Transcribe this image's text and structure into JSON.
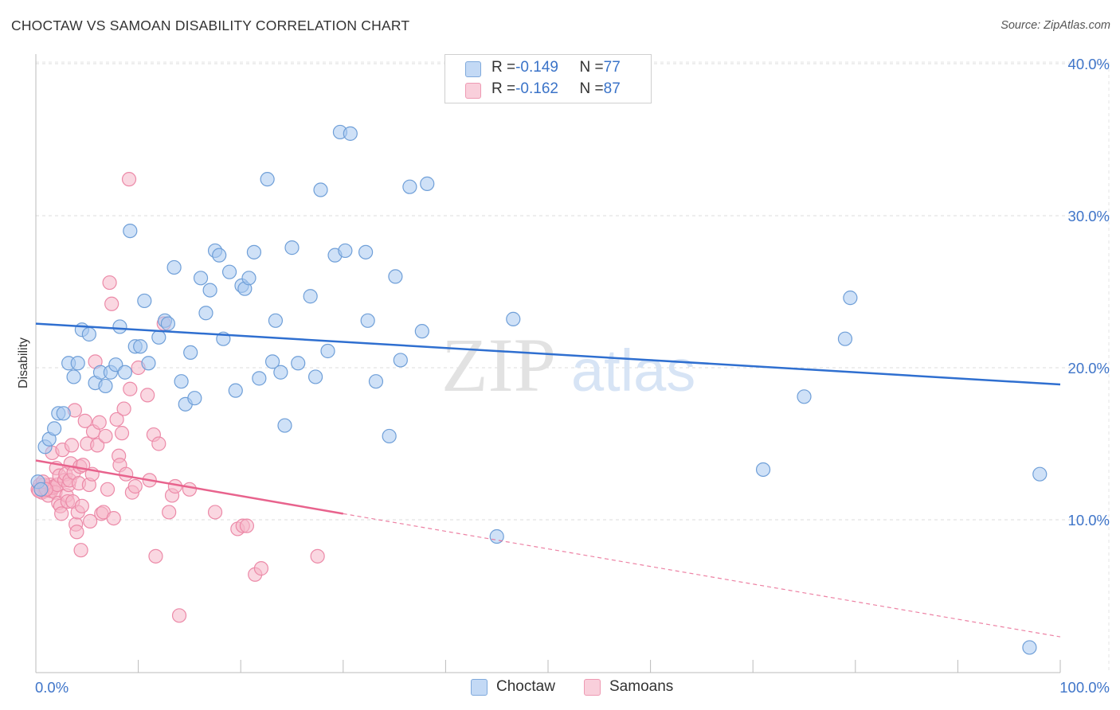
{
  "title": "CHOCTAW VS SAMOAN DISABILITY CORRELATION CHART",
  "source": "Source: ZipAtlas.com",
  "watermark": {
    "zip": "ZIP",
    "atlas": "atlas"
  },
  "legend_top": {
    "rows": [
      {
        "r_label": "R = ",
        "r_value": "-0.149",
        "n_label": "N = ",
        "n_value": "77",
        "color": "#a8c8f0"
      },
      {
        "r_label": "R = ",
        "r_value": "-0.162",
        "n_label": "N = ",
        "n_value": "87",
        "color": "#f6b6c8"
      }
    ]
  },
  "chart_data": {
    "type": "scatter",
    "title": "CHOCTAW VS SAMOAN DISABILITY CORRELATION CHART",
    "xlabel": "",
    "ylabel": "Disability",
    "xlim": [
      0,
      100
    ],
    "ylim": [
      0,
      41
    ],
    "x_tick_labels": [
      "0.0%",
      "100.0%"
    ],
    "y_ticks": [
      10,
      20,
      30,
      40
    ],
    "y_tick_labels": [
      "10.0%",
      "20.0%",
      "30.0%",
      "40.0%"
    ],
    "grid": true,
    "legend_position": "bottom-center",
    "series": [
      {
        "name": "Choctaw",
        "color": "#a8c8f0",
        "stroke": "#6f9fd8",
        "line_color": "#2f6fd0",
        "trend": {
          "x0": 0,
          "y0": 22.9,
          "x1": 100,
          "y1": 18.9
        },
        "points": [
          [
            0.2,
            12.5
          ],
          [
            0.9,
            14.8
          ],
          [
            1.3,
            15.3
          ],
          [
            1.8,
            16.0
          ],
          [
            2.2,
            17.0
          ],
          [
            2.7,
            17.0
          ],
          [
            3.2,
            20.3
          ],
          [
            3.7,
            19.4
          ],
          [
            4.1,
            20.3
          ],
          [
            4.5,
            22.5
          ],
          [
            5.2,
            22.2
          ],
          [
            5.8,
            19.0
          ],
          [
            6.3,
            19.7
          ],
          [
            6.8,
            18.8
          ],
          [
            7.3,
            19.7
          ],
          [
            7.8,
            20.2
          ],
          [
            8.2,
            22.7
          ],
          [
            8.7,
            19.7
          ],
          [
            9.2,
            29.0
          ],
          [
            9.7,
            21.4
          ],
          [
            10.2,
            21.4
          ],
          [
            10.6,
            24.4
          ],
          [
            11.0,
            20.3
          ],
          [
            12.0,
            22.0
          ],
          [
            12.6,
            23.1
          ],
          [
            12.9,
            22.9
          ],
          [
            13.5,
            26.6
          ],
          [
            14.2,
            19.1
          ],
          [
            14.6,
            17.6
          ],
          [
            15.1,
            21.0
          ],
          [
            15.5,
            18.0
          ],
          [
            16.1,
            25.9
          ],
          [
            16.6,
            23.6
          ],
          [
            17.0,
            25.1
          ],
          [
            17.5,
            27.7
          ],
          [
            17.9,
            27.4
          ],
          [
            18.3,
            21.9
          ],
          [
            18.9,
            26.3
          ],
          [
            19.5,
            18.5
          ],
          [
            20.1,
            25.4
          ],
          [
            20.4,
            25.2
          ],
          [
            20.8,
            25.9
          ],
          [
            21.3,
            27.6
          ],
          [
            21.8,
            19.3
          ],
          [
            22.6,
            32.4
          ],
          [
            23.1,
            20.4
          ],
          [
            23.4,
            23.1
          ],
          [
            23.9,
            19.7
          ],
          [
            24.3,
            16.2
          ],
          [
            25.0,
            27.9
          ],
          [
            25.6,
            20.3
          ],
          [
            26.8,
            24.7
          ],
          [
            27.3,
            19.4
          ],
          [
            27.8,
            31.7
          ],
          [
            28.5,
            21.1
          ],
          [
            29.2,
            27.4
          ],
          [
            29.7,
            35.5
          ],
          [
            30.2,
            27.7
          ],
          [
            30.7,
            35.4
          ],
          [
            32.2,
            27.6
          ],
          [
            32.4,
            23.1
          ],
          [
            33.2,
            19.1
          ],
          [
            34.5,
            15.5
          ],
          [
            35.1,
            26.0
          ],
          [
            35.6,
            20.5
          ],
          [
            36.5,
            31.9
          ],
          [
            37.7,
            22.4
          ],
          [
            38.2,
            32.1
          ],
          [
            45.0,
            8.9
          ],
          [
            46.6,
            23.2
          ],
          [
            71.0,
            13.3
          ],
          [
            75.0,
            18.1
          ],
          [
            79.0,
            21.9
          ],
          [
            79.5,
            24.6
          ],
          [
            98.0,
            13.0
          ],
          [
            97.0,
            1.6
          ],
          [
            0.5,
            12.0
          ]
        ]
      },
      {
        "name": "Samoans",
        "color": "#f6b6c8",
        "stroke": "#ec8aa8",
        "line_color": "#e8638d",
        "trend": {
          "x0": 0,
          "y0": 13.9,
          "x1": 30,
          "y1": 10.4
        },
        "trend_ext": {
          "x0": 30,
          "y0": 10.4,
          "x1": 100,
          "y1": 2.3
        },
        "points": [
          [
            0.2,
            12.0
          ],
          [
            0.4,
            12.3
          ],
          [
            0.6,
            11.8
          ],
          [
            0.8,
            12.3
          ],
          [
            0.9,
            11.9
          ],
          [
            1.1,
            12.1
          ],
          [
            1.2,
            11.6
          ],
          [
            1.4,
            12.3
          ],
          [
            1.5,
            11.9
          ],
          [
            1.6,
            14.4
          ],
          [
            1.7,
            12.1
          ],
          [
            1.8,
            12.2
          ],
          [
            1.9,
            11.8
          ],
          [
            2.0,
            13.4
          ],
          [
            2.1,
            12.3
          ],
          [
            2.2,
            11.1
          ],
          [
            2.3,
            12.9
          ],
          [
            2.4,
            10.9
          ],
          [
            2.5,
            10.4
          ],
          [
            2.6,
            14.6
          ],
          [
            2.8,
            12.6
          ],
          [
            2.9,
            13.0
          ],
          [
            3.0,
            11.6
          ],
          [
            3.1,
            11.2
          ],
          [
            3.2,
            12.3
          ],
          [
            3.3,
            12.6
          ],
          [
            3.4,
            13.7
          ],
          [
            3.5,
            14.9
          ],
          [
            3.6,
            11.2
          ],
          [
            3.7,
            13.1
          ],
          [
            3.8,
            17.2
          ],
          [
            3.9,
            9.7
          ],
          [
            4.0,
            9.2
          ],
          [
            4.1,
            10.5
          ],
          [
            4.2,
            12.4
          ],
          [
            4.3,
            13.5
          ],
          [
            4.4,
            8.0
          ],
          [
            4.5,
            10.9
          ],
          [
            4.6,
            13.6
          ],
          [
            4.8,
            16.5
          ],
          [
            5.0,
            15.0
          ],
          [
            5.2,
            12.3
          ],
          [
            5.3,
            9.9
          ],
          [
            5.5,
            13.0
          ],
          [
            5.6,
            15.8
          ],
          [
            5.8,
            20.4
          ],
          [
            6.0,
            14.9
          ],
          [
            6.2,
            16.4
          ],
          [
            6.4,
            10.4
          ],
          [
            6.6,
            10.5
          ],
          [
            6.8,
            15.5
          ],
          [
            7.0,
            12.0
          ],
          [
            7.2,
            25.6
          ],
          [
            7.4,
            24.2
          ],
          [
            7.6,
            10.1
          ],
          [
            7.9,
            16.6
          ],
          [
            8.1,
            14.2
          ],
          [
            8.2,
            13.6
          ],
          [
            8.4,
            15.7
          ],
          [
            8.6,
            17.3
          ],
          [
            8.8,
            13.0
          ],
          [
            9.1,
            32.4
          ],
          [
            9.2,
            18.6
          ],
          [
            9.4,
            11.8
          ],
          [
            9.7,
            12.2
          ],
          [
            10.0,
            20.0
          ],
          [
            10.9,
            18.2
          ],
          [
            11.1,
            12.6
          ],
          [
            11.5,
            15.6
          ],
          [
            11.7,
            7.6
          ],
          [
            12.0,
            15.0
          ],
          [
            12.5,
            22.9
          ],
          [
            13.0,
            10.5
          ],
          [
            13.3,
            11.6
          ],
          [
            13.6,
            12.2
          ],
          [
            14.0,
            3.7
          ],
          [
            15.0,
            12.0
          ],
          [
            17.5,
            10.5
          ],
          [
            19.7,
            9.4
          ],
          [
            20.2,
            9.6
          ],
          [
            20.6,
            9.6
          ],
          [
            21.4,
            6.4
          ],
          [
            22.0,
            6.8
          ],
          [
            27.5,
            7.6
          ],
          [
            0.3,
            11.9
          ],
          [
            0.7,
            12.5
          ],
          [
            1.0,
            12.0
          ]
        ]
      }
    ]
  }
}
